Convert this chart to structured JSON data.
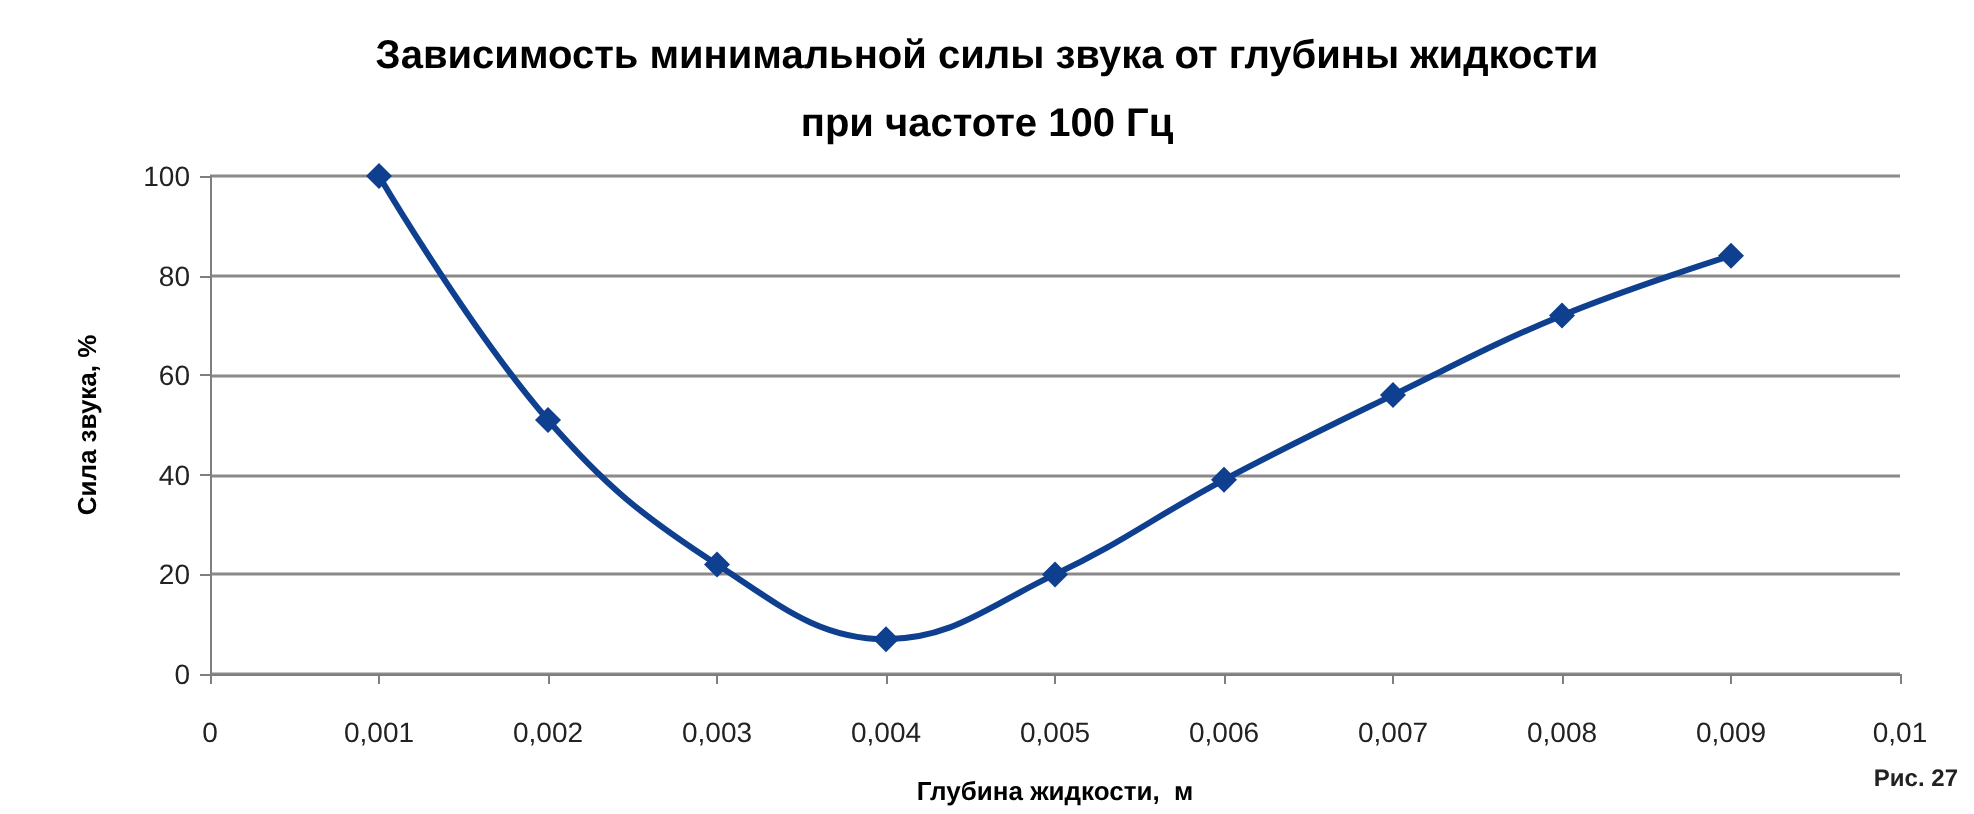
{
  "chart_data": {
    "type": "line",
    "title": "Зависимость минимальной силы звука от глубины жидкости\nпри частоте 100 Гц",
    "xlabel": "Глубина жидкости,  м",
    "ylabel": "Сила звука, %",
    "annotations": [
      "Рис. 27"
    ],
    "x": [
      0.001,
      0.002,
      0.003,
      0.004,
      0.005,
      0.006,
      0.007,
      0.008,
      0.009
    ],
    "series": [
      {
        "color": "#0f3f8f",
        "values": [
          100,
          51,
          22,
          7,
          20,
          39,
          56,
          72,
          84
        ]
      }
    ],
    "xlim": [
      0,
      0.01
    ],
    "xticks": [
      0,
      {
        "value": 0.001,
        "label": "0,001"
      },
      {
        "value": 0.002,
        "label": "0,002"
      },
      {
        "value": 0.003,
        "label": "0,003"
      },
      {
        "value": 0.004,
        "label": "0,004"
      },
      {
        "value": 0.005,
        "label": "0,005"
      },
      {
        "value": 0.006,
        "label": "0,006"
      },
      {
        "value": 0.007,
        "label": "0,007"
      },
      {
        "value": 0.008,
        "label": "0,008"
      },
      {
        "value": 0.009,
        "label": "0,009"
      },
      {
        "value": 0.01,
        "label": "0,01"
      }
    ],
    "ylim": [
      0,
      100
    ],
    "yticks": [
      0,
      20,
      40,
      60,
      80,
      100
    ],
    "grid": "y",
    "marker": "diamond",
    "line_style": "solid"
  }
}
